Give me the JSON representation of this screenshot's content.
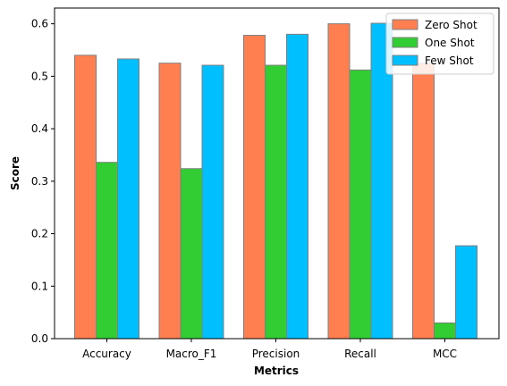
{
  "chart_data": {
    "type": "bar",
    "categories": [
      "Accuracy",
      "Macro_F1",
      "Precision",
      "Recall",
      "MCC"
    ],
    "series": [
      {
        "name": "Zero Shot",
        "color": "#FF7F50",
        "values": [
          0.54,
          0.525,
          0.578,
          0.6,
          0.525
        ]
      },
      {
        "name": "One Shot",
        "color": "#32CD32",
        "values": [
          0.336,
          0.324,
          0.521,
          0.512,
          0.03
        ]
      },
      {
        "name": "Few Shot",
        "color": "#00BFFF",
        "values": [
          0.533,
          0.521,
          0.58,
          0.601,
          0.177
        ]
      }
    ],
    "xlabel": "Metrics",
    "ylabel": "Score",
    "ylim": [
      0,
      0.63
    ],
    "yticks": [
      "0.0",
      "0.1",
      "0.2",
      "0.3",
      "0.4",
      "0.5",
      "0.6"
    ],
    "legend_position": "top-right",
    "grid": false
  }
}
